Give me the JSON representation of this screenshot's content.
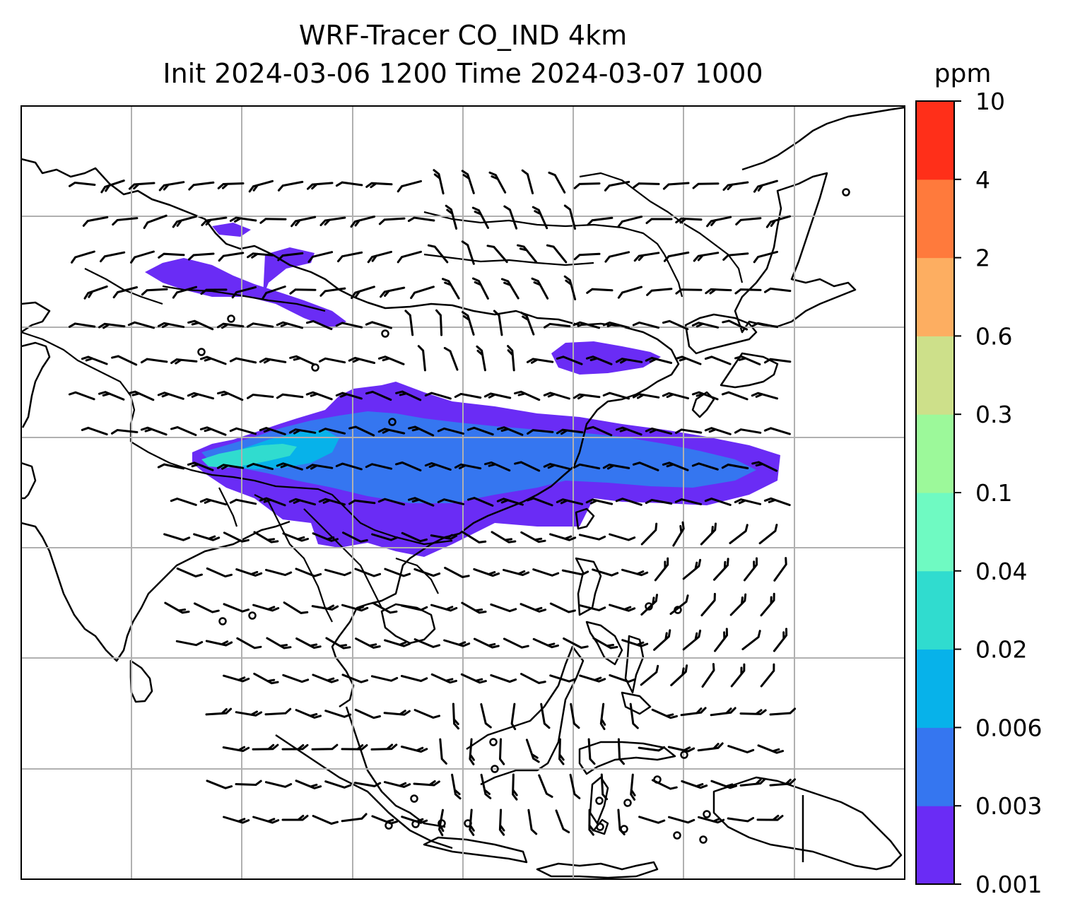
{
  "chart_data": {
    "type": "heatmap",
    "title": "WRF-Tracer CO_IND 4km",
    "subtitle": "Init 2024-03-06 1200 Time 2024-03-07 1000",
    "colorbar": {
      "label": "ppm",
      "levels": [
        "0.001",
        "0.003",
        "0.006",
        "0.02",
        "0.04",
        "0.1",
        "0.3",
        "0.6",
        "2",
        "4",
        "10"
      ],
      "colors": [
        "#6a2cf5",
        "#3576f0",
        "#07b2ea",
        "#30dccf",
        "#6ffac2",
        "#9cf99a",
        "#cde08a",
        "#fdae61",
        "#ff7a3c",
        "#ff2f19"
      ]
    },
    "gridlines": true,
    "map_features": [
      "coastlines",
      "country borders",
      "wind barbs"
    ],
    "plume": "tracer concentration band oriented west-east across the centre of the map, highest values (0.02-0.04 ppm) at its western end"
  }
}
